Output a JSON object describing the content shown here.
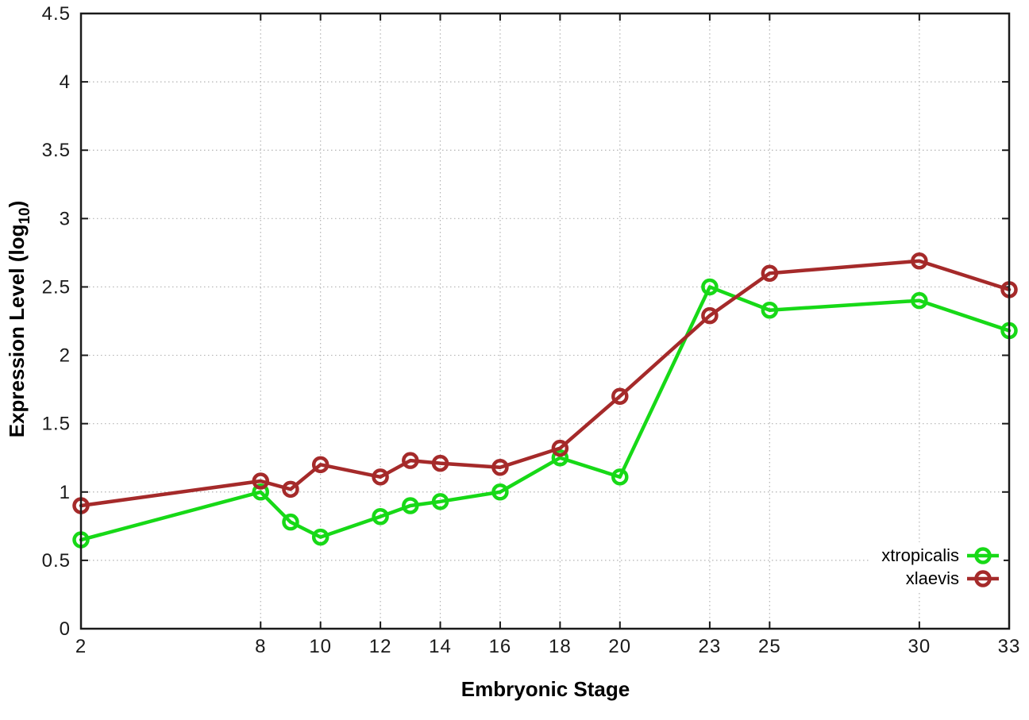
{
  "chart_data": {
    "type": "line",
    "xlabel": "Embryonic Stage",
    "ylabel_main": "Expression Level (log",
    "ylabel_sub": "10",
    "ylabel_close": ")",
    "xlim": [
      2,
      33
    ],
    "ylim": [
      0,
      4.5
    ],
    "xticks": [
      2,
      8,
      10,
      12,
      14,
      16,
      18,
      20,
      23,
      25,
      30,
      33
    ],
    "xtick_labels": [
      "2",
      "8",
      "10",
      "12",
      "14",
      "16",
      "18",
      "20",
      "23",
      "25",
      "30",
      "33"
    ],
    "yticks": [
      0,
      0.5,
      1,
      1.5,
      2,
      2.5,
      3,
      3.5,
      4,
      4.5
    ],
    "ytick_labels": [
      "0",
      "0.5",
      "1",
      "1.5",
      "2",
      "2.5",
      "3",
      "3.5",
      "4",
      "4.5"
    ],
    "grid": true,
    "legend_position": "bottom-right-inside",
    "x": [
      2,
      8,
      9,
      10,
      12,
      13,
      14,
      16,
      18,
      20,
      23,
      25,
      30,
      33
    ],
    "series": [
      {
        "name": "xtropicalis",
        "color": "#17d917",
        "marker": "open-circle",
        "values": [
          0.65,
          1.0,
          0.78,
          0.67,
          0.82,
          0.9,
          0.93,
          1.0,
          1.25,
          1.11,
          2.5,
          2.33,
          2.4,
          2.18
        ]
      },
      {
        "name": "xlaevis",
        "color": "#a52a2a",
        "marker": "open-circle",
        "values": [
          0.9,
          1.08,
          1.02,
          1.2,
          1.11,
          1.23,
          1.21,
          1.18,
          1.32,
          1.7,
          2.29,
          2.6,
          2.69,
          2.48
        ]
      }
    ],
    "colors": {
      "grid": "#b3b3b3",
      "axis": "#1a1a1a",
      "background": "#ffffff"
    }
  }
}
